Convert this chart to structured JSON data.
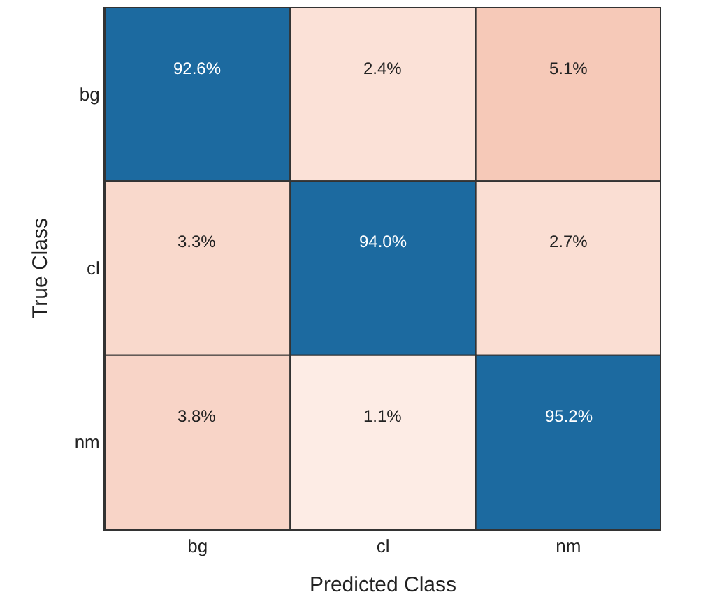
{
  "chart_data": {
    "type": "heatmap",
    "xlabel": "Predicted Class",
    "ylabel": "True Class",
    "categories": [
      "bg",
      "cl",
      "nm"
    ],
    "y_categories": [
      "bg",
      "cl",
      "nm"
    ],
    "cells": [
      [
        92.6,
        2.4,
        5.1
      ],
      [
        3.3,
        94.0,
        2.7
      ],
      [
        3.8,
        1.1,
        95.2
      ]
    ],
    "cell_labels": [
      [
        "92.6%",
        "2.4%",
        "5.1%"
      ],
      [
        "3.3%",
        "94.0%",
        "2.7%"
      ],
      [
        "3.8%",
        "1.1%",
        "95.2%"
      ]
    ]
  }
}
